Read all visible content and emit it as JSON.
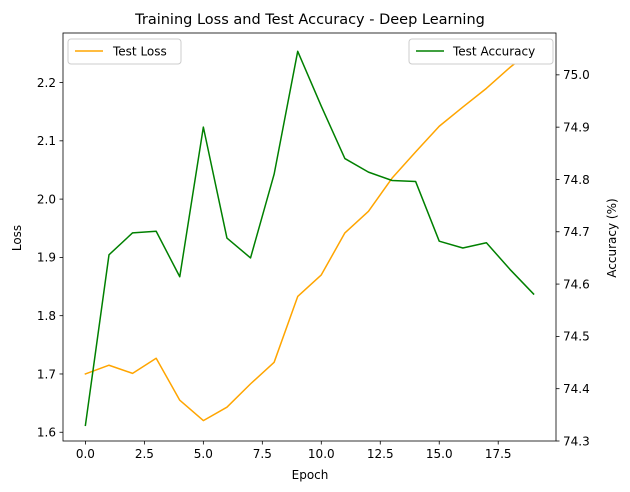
{
  "chart_data": {
    "type": "line",
    "title": "Training Loss and Test Accuracy - Deep Learning",
    "xlabel": "Epoch",
    "ylabel_left": "Loss",
    "ylabel_right": "Accuracy (%)",
    "x": [
      0,
      1,
      2,
      3,
      4,
      5,
      6,
      7,
      8,
      9,
      10,
      11,
      12,
      13,
      14,
      15,
      16,
      17,
      18,
      19
    ],
    "xlim": [
      -0.95,
      19.95
    ],
    "ylim_left": [
      1.585,
      2.285
    ],
    "ylim_right": [
      74.3,
      75.08
    ],
    "x_ticks": [
      0.0,
      2.5,
      5.0,
      7.5,
      10.0,
      12.5,
      15.0,
      17.5
    ],
    "x_tick_labels": [
      "0.0",
      "2.5",
      "5.0",
      "7.5",
      "10.0",
      "12.5",
      "15.0",
      "17.5"
    ],
    "y_left_ticks": [
      1.6,
      1.7,
      1.8,
      1.9,
      2.0,
      2.1,
      2.2
    ],
    "y_left_tick_labels": [
      "1.6",
      "1.7",
      "1.8",
      "1.9",
      "2.0",
      "2.1",
      "2.2"
    ],
    "y_right_ticks": [
      74.3,
      74.4,
      74.5,
      74.6,
      74.7,
      74.8,
      74.9,
      75.0
    ],
    "y_right_tick_labels": [
      "74.3",
      "74.4",
      "74.5",
      "74.6",
      "74.7",
      "74.8",
      "74.9",
      "75.0"
    ],
    "grid": false,
    "series": [
      {
        "name": "Test Loss",
        "axis": "left",
        "color": "#ffa500",
        "values": [
          1.7,
          1.715,
          1.701,
          1.727,
          1.655,
          1.62,
          1.643,
          1.683,
          1.72,
          1.833,
          1.87,
          1.942,
          1.979,
          2.036,
          2.081,
          2.125,
          2.158,
          2.19,
          2.226,
          2.258
        ]
      },
      {
        "name": "Test Accuracy",
        "axis": "right",
        "color": "#008000",
        "values": [
          74.33,
          74.656,
          74.698,
          74.701,
          74.614,
          74.9,
          74.688,
          74.65,
          74.81,
          75.045,
          74.94,
          74.84,
          74.814,
          74.798,
          74.796,
          74.682,
          74.669,
          74.679,
          74.628,
          74.581
        ]
      }
    ],
    "legend_left": {
      "placement": "upper-left",
      "entries": [
        "Test Loss"
      ]
    },
    "legend_right": {
      "placement": "upper-right",
      "entries": [
        "Test Accuracy"
      ]
    }
  }
}
